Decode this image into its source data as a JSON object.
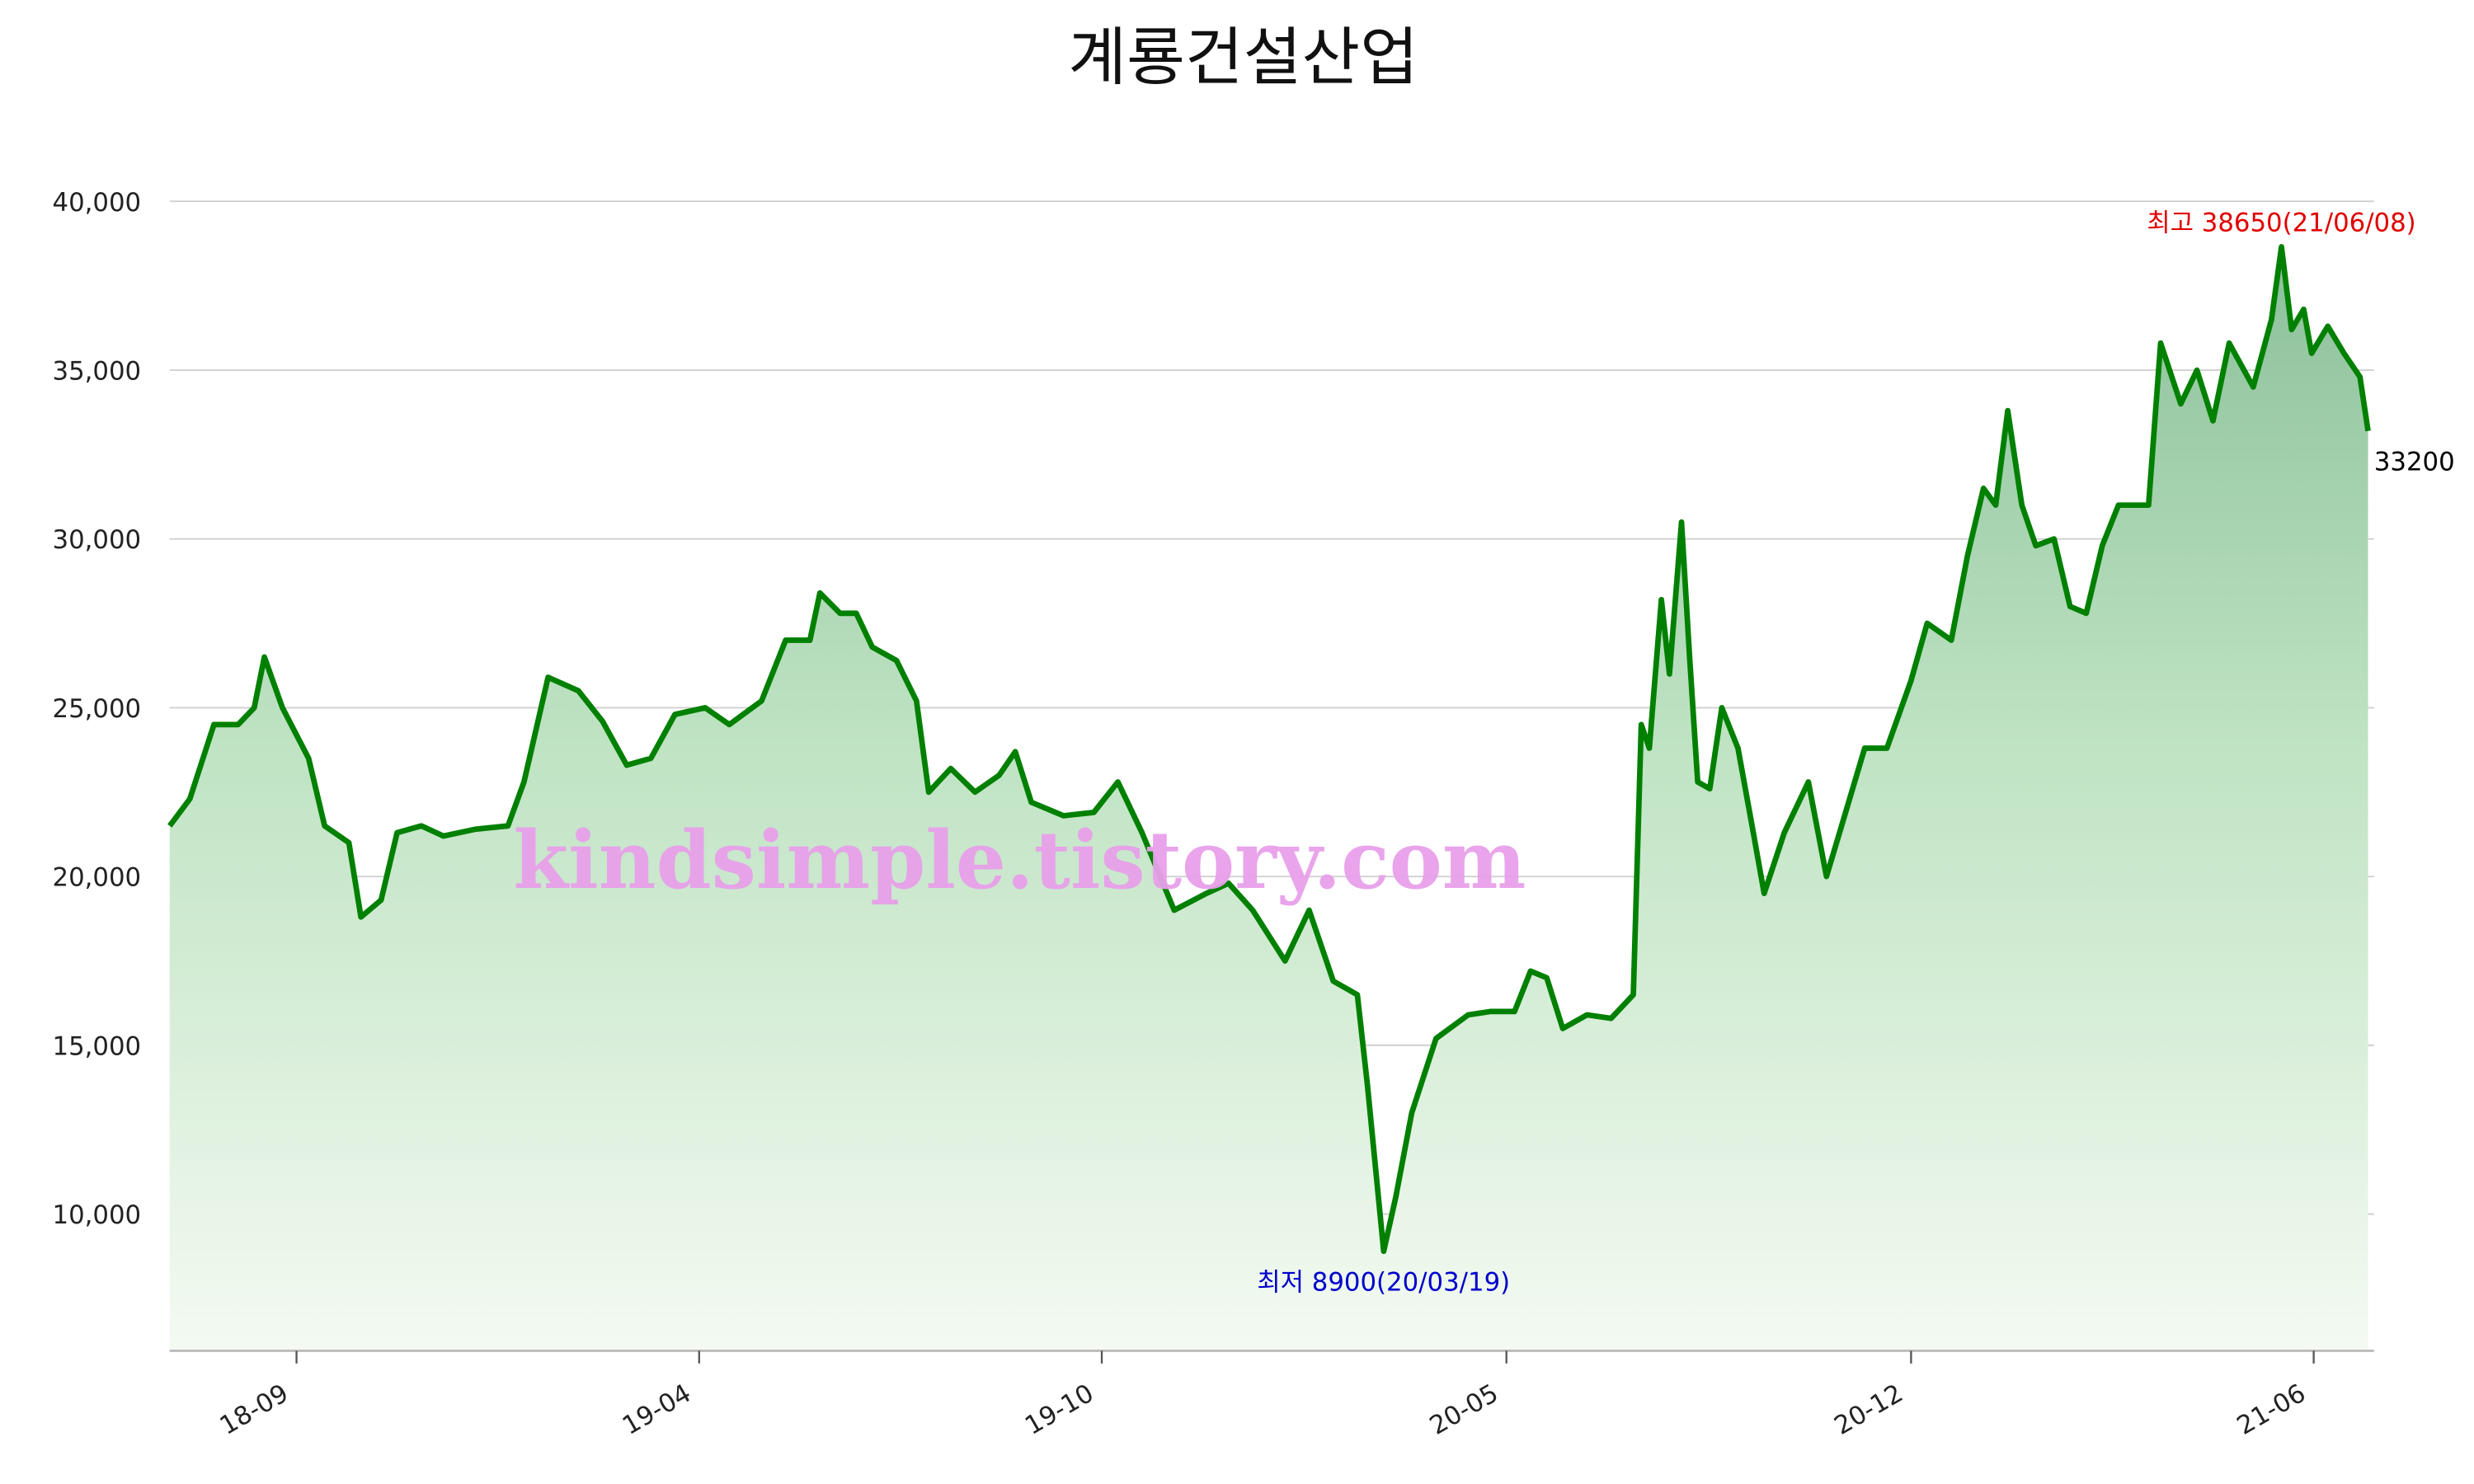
{
  "chart_data": {
    "type": "line",
    "title": "계룡건설산업",
    "watermark": "kindsimple.tistory.com",
    "x": [
      "2018-07-25",
      "2018-08-04",
      "2018-08-16",
      "2018-08-28",
      "2018-09-05",
      "2018-09-10",
      "2018-09-19",
      "2018-10-02",
      "2018-10-10",
      "2018-10-22",
      "2018-10-28",
      "2018-11-07",
      "2018-11-15",
      "2018-11-27",
      "2018-12-08",
      "2018-12-24",
      "2019-01-09",
      "2019-01-17",
      "2019-01-29",
      "2019-02-13",
      "2019-02-25",
      "2019-03-09",
      "2019-03-21",
      "2019-04-02",
      "2019-04-17",
      "2019-04-29",
      "2019-05-15",
      "2019-05-27",
      "2019-06-08",
      "2019-06-13",
      "2019-06-23",
      "2019-07-01",
      "2019-07-09",
      "2019-07-21",
      "2019-07-31",
      "2019-08-06",
      "2019-08-17",
      "2019-08-29",
      "2019-09-10",
      "2019-09-18",
      "2019-09-26",
      "2019-10-12",
      "2019-10-27",
      "2019-11-08",
      "2019-11-20",
      "2019-12-06",
      "2019-12-22",
      "2020-01-02",
      "2020-01-14",
      "2020-01-30",
      "2020-02-11",
      "2020-02-23",
      "2020-03-06",
      "2020-03-11",
      "2020-03-19",
      "2020-03-25",
      "2020-04-02",
      "2020-04-14",
      "2020-04-30",
      "2020-05-11",
      "2020-05-23",
      "2020-05-31",
      "2020-06-08",
      "2020-06-16",
      "2020-06-28",
      "2020-07-10",
      "2020-07-21",
      "2020-07-25",
      "2020-07-29",
      "2020-08-04",
      "2020-08-08",
      "2020-08-14",
      "2020-08-18",
      "2020-08-22",
      "2020-08-28",
      "2020-09-03",
      "2020-09-11",
      "2020-09-18",
      "2020-09-24",
      "2020-10-04",
      "2020-10-16",
      "2020-10-25",
      "2020-11-01",
      "2020-11-13",
      "2020-11-24",
      "2020-12-06",
      "2020-12-14",
      "2020-12-26",
      "2021-01-03",
      "2021-01-11",
      "2021-01-17",
      "2021-01-23",
      "2021-01-30",
      "2021-02-06",
      "2021-02-15",
      "2021-02-23",
      "2021-03-03",
      "2021-03-11",
      "2021-03-19",
      "2021-03-27",
      "2021-04-03",
      "2021-04-09",
      "2021-04-19",
      "2021-04-27",
      "2021-05-05",
      "2021-05-13",
      "2021-05-25",
      "2021-06-03",
      "2021-06-08",
      "2021-06-13",
      "2021-06-19",
      "2021-06-23",
      "2021-07-01",
      "2021-07-09",
      "2021-07-17",
      "2021-07-21"
    ],
    "series": [
      {
        "color": "#008000",
        "values": [
          21500,
          22300,
          24500,
          24500,
          25000,
          26500,
          25000,
          23500,
          21500,
          21000,
          18800,
          19300,
          21300,
          21500,
          21200,
          21400,
          21500,
          22800,
          25900,
          25500,
          24600,
          23300,
          23500,
          24800,
          25000,
          24500,
          25200,
          27000,
          27000,
          28400,
          27800,
          27800,
          26800,
          26400,
          25200,
          22500,
          23200,
          22500,
          23000,
          23700,
          22200,
          21800,
          21900,
          22800,
          21300,
          19000,
          19500,
          19800,
          19000,
          17500,
          19000,
          16900,
          16500,
          13800,
          8900,
          10500,
          13000,
          15200,
          15900,
          16000,
          16000,
          17200,
          17000,
          15500,
          15900,
          15800,
          16500,
          24500,
          23800,
          28200,
          26000,
          30500,
          26500,
          22800,
          22600,
          25000,
          23800,
          21500,
          19500,
          21300,
          22800,
          20000,
          21400,
          23800,
          23800,
          25800,
          27500,
          27000,
          29500,
          31500,
          31000,
          33800,
          31000,
          29800,
          30000,
          28000,
          27800,
          29800,
          31000,
          31000,
          31000,
          35800,
          34000,
          35000,
          33500,
          35800,
          34500,
          36500,
          38650,
          36200,
          36800,
          35500,
          36300,
          35500,
          34800,
          33200
        ]
      }
    ],
    "xlim": [
      "2018-07-25",
      "2021-07-24"
    ],
    "xticks": [
      {
        "value": "2018-09-26",
        "label": "18-09"
      },
      {
        "value": "2019-04-14",
        "label": "19-04"
      },
      {
        "value": "2019-10-31",
        "label": "19-10"
      },
      {
        "value": "2020-05-19",
        "label": "20-05"
      },
      {
        "value": "2020-12-06",
        "label": "20-12"
      },
      {
        "value": "2021-06-24",
        "label": "21-06"
      }
    ],
    "ylim": [
      5950,
      41000
    ],
    "yticks": [
      {
        "value": 10000,
        "label": "10,000"
      },
      {
        "value": 15000,
        "label": "15,000"
      },
      {
        "value": 20000,
        "label": "20,000"
      },
      {
        "value": 25000,
        "label": "25,000"
      },
      {
        "value": 30000,
        "label": "30,000"
      },
      {
        "value": 35000,
        "label": "35,000"
      },
      {
        "value": 40000,
        "label": "40,000"
      }
    ],
    "grid": true,
    "annotations": [
      {
        "text": "최고 38650(21/06/08)",
        "x": "2021-06-08",
        "y": 38650,
        "color": "#e00000"
      },
      {
        "text": "최저 8900(20/03/19)",
        "x": "2020-03-19",
        "y": 8900,
        "color": "#0000cc"
      },
      {
        "text": "33200",
        "x": "2021-07-21",
        "y": 33200,
        "color": "#000000"
      }
    ]
  }
}
